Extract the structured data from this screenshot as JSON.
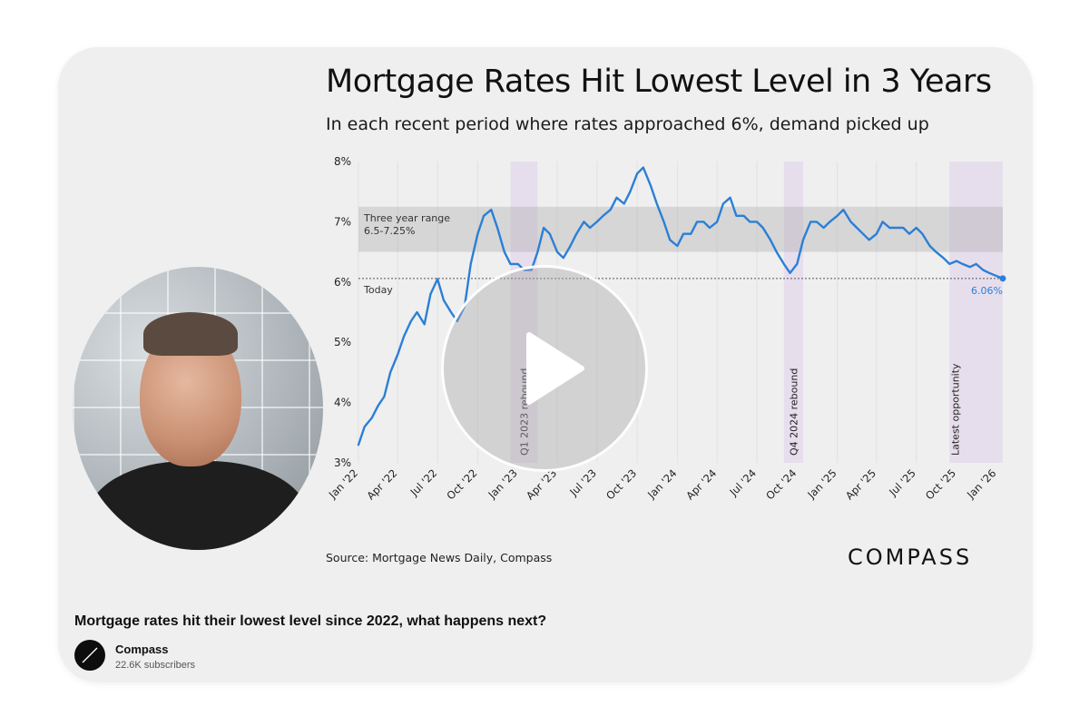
{
  "video": {
    "title": "Mortgage rates hit their lowest level since 2022, what happens next?",
    "channel": {
      "name": "Compass",
      "subscribers": "22.6K subscribers"
    },
    "play_icon": "play-icon"
  },
  "slide": {
    "source": "Source: Mortgage News Daily, Compass",
    "brand": "COMPASS"
  },
  "chart_data": {
    "type": "line",
    "title": "Mortgage Rates Hit Lowest Level in 3 Years",
    "subtitle": "In each recent period where rates approached 6%, demand picked up",
    "xlabel": "",
    "ylabel": "",
    "x_range": [
      "2022-01-01",
      "2026-01-15"
    ],
    "ylim": [
      3,
      8
    ],
    "yticks": [
      "3%",
      "4%",
      "5%",
      "6%",
      "7%",
      "8%"
    ],
    "xticks": [
      {
        "date": "2022-01-01",
        "label": "Jan '22"
      },
      {
        "date": "2022-04-01",
        "label": "Apr '22"
      },
      {
        "date": "2022-07-01",
        "label": "Jul '22"
      },
      {
        "date": "2022-10-01",
        "label": "Oct '22"
      },
      {
        "date": "2023-01-01",
        "label": "Jan '23"
      },
      {
        "date": "2023-04-01",
        "label": "Apr '23"
      },
      {
        "date": "2023-07-01",
        "label": "Jul '23"
      },
      {
        "date": "2023-10-01",
        "label": "Oct '23"
      },
      {
        "date": "2024-01-01",
        "label": "Jan '24"
      },
      {
        "date": "2024-04-01",
        "label": "Apr '24"
      },
      {
        "date": "2024-07-01",
        "label": "Jul '24"
      },
      {
        "date": "2024-10-01",
        "label": "Oct '24"
      },
      {
        "date": "2025-01-01",
        "label": "Jan '25"
      },
      {
        "date": "2025-04-01",
        "label": "Apr '25"
      },
      {
        "date": "2025-07-01",
        "label": "Jul '25"
      },
      {
        "date": "2025-10-01",
        "label": "Oct '25"
      },
      {
        "date": "2026-01-01",
        "label": "Jan '26"
      }
    ],
    "grid": "vertical",
    "series": [
      {
        "color": "#2b7fd6",
        "points": [
          [
            "2022-01-01",
            3.3
          ],
          [
            "2022-01-15",
            3.6
          ],
          [
            "2022-02-01",
            3.75
          ],
          [
            "2022-02-15",
            3.95
          ],
          [
            "2022-03-01",
            4.1
          ],
          [
            "2022-03-15",
            4.5
          ],
          [
            "2022-04-01",
            4.8
          ],
          [
            "2022-04-15",
            5.1
          ],
          [
            "2022-05-01",
            5.35
          ],
          [
            "2022-05-15",
            5.5
          ],
          [
            "2022-06-01",
            5.3
          ],
          [
            "2022-06-15",
            5.8
          ],
          [
            "2022-07-01",
            6.05
          ],
          [
            "2022-07-15",
            5.7
          ],
          [
            "2022-08-01",
            5.5
          ],
          [
            "2022-08-15",
            5.35
          ],
          [
            "2022-09-01",
            5.6
          ],
          [
            "2022-09-15",
            6.3
          ],
          [
            "2022-10-01",
            6.8
          ],
          [
            "2022-10-15",
            7.1
          ],
          [
            "2022-11-01",
            7.2
          ],
          [
            "2022-11-15",
            6.9
          ],
          [
            "2022-12-01",
            6.5
          ],
          [
            "2022-12-15",
            6.3
          ],
          [
            "2023-01-01",
            6.3
          ],
          [
            "2023-01-15",
            6.2
          ],
          [
            "2023-02-01",
            6.2
          ],
          [
            "2023-02-15",
            6.5
          ],
          [
            "2023-03-01",
            6.9
          ],
          [
            "2023-03-15",
            6.8
          ],
          [
            "2023-04-01",
            6.5
          ],
          [
            "2023-04-15",
            6.4
          ],
          [
            "2023-05-01",
            6.6
          ],
          [
            "2023-05-15",
            6.8
          ],
          [
            "2023-06-01",
            7.0
          ],
          [
            "2023-06-15",
            6.9
          ],
          [
            "2023-07-01",
            7.0
          ],
          [
            "2023-07-15",
            7.1
          ],
          [
            "2023-08-01",
            7.2
          ],
          [
            "2023-08-15",
            7.4
          ],
          [
            "2023-09-01",
            7.3
          ],
          [
            "2023-09-15",
            7.5
          ],
          [
            "2023-10-01",
            7.8
          ],
          [
            "2023-10-15",
            7.9
          ],
          [
            "2023-11-01",
            7.6
          ],
          [
            "2023-11-15",
            7.3
          ],
          [
            "2023-12-01",
            7.0
          ],
          [
            "2023-12-15",
            6.7
          ],
          [
            "2024-01-01",
            6.6
          ],
          [
            "2024-01-15",
            6.8
          ],
          [
            "2024-02-01",
            6.8
          ],
          [
            "2024-02-15",
            7.0
          ],
          [
            "2024-03-01",
            7.0
          ],
          [
            "2024-03-15",
            6.9
          ],
          [
            "2024-04-01",
            7.0
          ],
          [
            "2024-04-15",
            7.3
          ],
          [
            "2024-05-01",
            7.4
          ],
          [
            "2024-05-15",
            7.1
          ],
          [
            "2024-06-01",
            7.1
          ],
          [
            "2024-06-15",
            7.0
          ],
          [
            "2024-07-01",
            7.0
          ],
          [
            "2024-07-15",
            6.9
          ],
          [
            "2024-08-01",
            6.7
          ],
          [
            "2024-08-15",
            6.5
          ],
          [
            "2024-09-01",
            6.3
          ],
          [
            "2024-09-15",
            6.15
          ],
          [
            "2024-10-01",
            6.3
          ],
          [
            "2024-10-15",
            6.7
          ],
          [
            "2024-11-01",
            7.0
          ],
          [
            "2024-11-15",
            7.0
          ],
          [
            "2024-12-01",
            6.9
          ],
          [
            "2024-12-15",
            7.0
          ],
          [
            "2025-01-01",
            7.1
          ],
          [
            "2025-01-15",
            7.2
          ],
          [
            "2025-02-01",
            7.0
          ],
          [
            "2025-02-15",
            6.9
          ],
          [
            "2025-03-01",
            6.8
          ],
          [
            "2025-03-15",
            6.7
          ],
          [
            "2025-04-01",
            6.8
          ],
          [
            "2025-04-15",
            7.0
          ],
          [
            "2025-05-01",
            6.9
          ],
          [
            "2025-05-15",
            6.9
          ],
          [
            "2025-06-01",
            6.9
          ],
          [
            "2025-06-15",
            6.8
          ],
          [
            "2025-07-01",
            6.9
          ],
          [
            "2025-07-15",
            6.8
          ],
          [
            "2025-08-01",
            6.6
          ],
          [
            "2025-08-15",
            6.5
          ],
          [
            "2025-09-01",
            6.4
          ],
          [
            "2025-09-15",
            6.3
          ],
          [
            "2025-10-01",
            6.35
          ],
          [
            "2025-10-15",
            6.3
          ],
          [
            "2025-11-01",
            6.25
          ],
          [
            "2025-11-15",
            6.3
          ],
          [
            "2025-12-01",
            6.2
          ],
          [
            "2025-12-15",
            6.15
          ],
          [
            "2026-01-01",
            6.1
          ],
          [
            "2026-01-15",
            6.06
          ]
        ]
      }
    ],
    "range_band": {
      "y0": 6.5,
      "y1": 7.25,
      "label": "Three year range",
      "sublabel": "6.5-7.25%"
    },
    "reference_line": {
      "y": 6.06,
      "label": "Today",
      "value_label": "6.06%"
    },
    "highlights": [
      {
        "x0": "2022-12-15",
        "x1": "2023-02-15",
        "label": "Q1 2023 rebound"
      },
      {
        "x0": "2024-09-01",
        "x1": "2024-10-15",
        "label": "Q4 2024 rebound"
      },
      {
        "x0": "2025-09-15",
        "x1": "2026-01-15",
        "label": "Latest opportunity"
      }
    ]
  }
}
